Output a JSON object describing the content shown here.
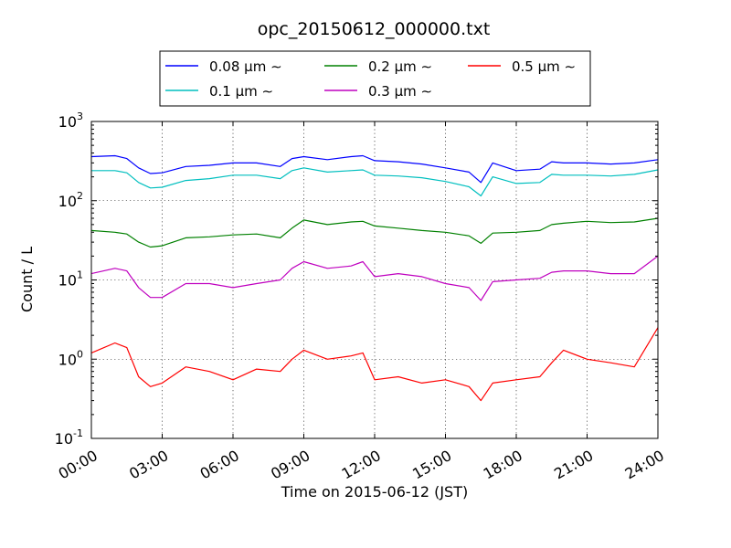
{
  "chart_data": {
    "type": "line",
    "title": "opc_20150612_000000.txt",
    "xlabel": "Time on 2015-06-12 (JST)",
    "ylabel": "Count / L",
    "y_scale": "log",
    "ylim": [
      0.1,
      1000
    ],
    "y_ticks": [
      {
        "value": 0.1,
        "base": "10",
        "exp": "-1"
      },
      {
        "value": 1,
        "base": "10",
        "exp": "0"
      },
      {
        "value": 10,
        "base": "10",
        "exp": "1"
      },
      {
        "value": 100,
        "base": "10",
        "exp": "2"
      },
      {
        "value": 1000,
        "base": "10",
        "exp": "3"
      }
    ],
    "x_ticks": [
      "00:00",
      "03:00",
      "06:00",
      "09:00",
      "12:00",
      "15:00",
      "18:00",
      "21:00",
      "24:00"
    ],
    "xlim": [
      "00:00",
      "24:00"
    ],
    "grid": true,
    "legend_position": "top, above plot, 3 columns",
    "x": [
      "00:00",
      "01:00",
      "01:30",
      "02:00",
      "02:30",
      "03:00",
      "04:00",
      "05:00",
      "06:00",
      "07:00",
      "08:00",
      "08:30",
      "09:00",
      "10:00",
      "11:00",
      "11:30",
      "12:00",
      "13:00",
      "14:00",
      "15:00",
      "16:00",
      "16:30",
      "17:00",
      "18:00",
      "19:00",
      "19:30",
      "20:00",
      "21:00",
      "22:00",
      "23:00",
      "24:00"
    ],
    "series": [
      {
        "name": "0.08 μm ∼",
        "color": "#0000ff",
        "values": [
          360,
          370,
          340,
          260,
          220,
          225,
          270,
          280,
          300,
          300,
          270,
          340,
          360,
          330,
          360,
          370,
          320,
          310,
          290,
          260,
          230,
          170,
          300,
          240,
          250,
          310,
          300,
          300,
          290,
          300,
          330
        ]
      },
      {
        "name": "0.1 μm ∼",
        "color": "#00bfbf",
        "values": [
          240,
          240,
          225,
          170,
          145,
          148,
          180,
          190,
          210,
          210,
          190,
          240,
          260,
          230,
          240,
          245,
          210,
          205,
          195,
          175,
          150,
          115,
          200,
          165,
          170,
          215,
          210,
          210,
          205,
          215,
          245
        ]
      },
      {
        "name": "0.2 μm ∼",
        "color": "#008000",
        "values": [
          42,
          40,
          38,
          30,
          26,
          27,
          34,
          35,
          37,
          38,
          34,
          45,
          57,
          50,
          54,
          55,
          48,
          45,
          42,
          40,
          36,
          29,
          39,
          40,
          42,
          50,
          52,
          55,
          53,
          54,
          60
        ]
      },
      {
        "name": "0.3 μm ∼",
        "color": "#bf00bf",
        "values": [
          12,
          14,
          13,
          8,
          6,
          6,
          9,
          9,
          8,
          9,
          10,
          14,
          17,
          14,
          15,
          17,
          11,
          12,
          11,
          9,
          8,
          5.5,
          9.5,
          10,
          10.5,
          12.5,
          13,
          13,
          12,
          12,
          20
        ]
      },
      {
        "name": "0.5 μm ∼",
        "color": "#ff0000",
        "values": [
          1.2,
          1.6,
          1.4,
          0.6,
          0.45,
          0.5,
          0.8,
          0.7,
          0.55,
          0.75,
          0.7,
          1.0,
          1.3,
          1.0,
          1.1,
          1.2,
          0.55,
          0.6,
          0.5,
          0.55,
          0.45,
          0.3,
          0.5,
          0.55,
          0.6,
          0.9,
          1.3,
          1.0,
          0.9,
          0.8,
          2.5
        ]
      }
    ]
  }
}
